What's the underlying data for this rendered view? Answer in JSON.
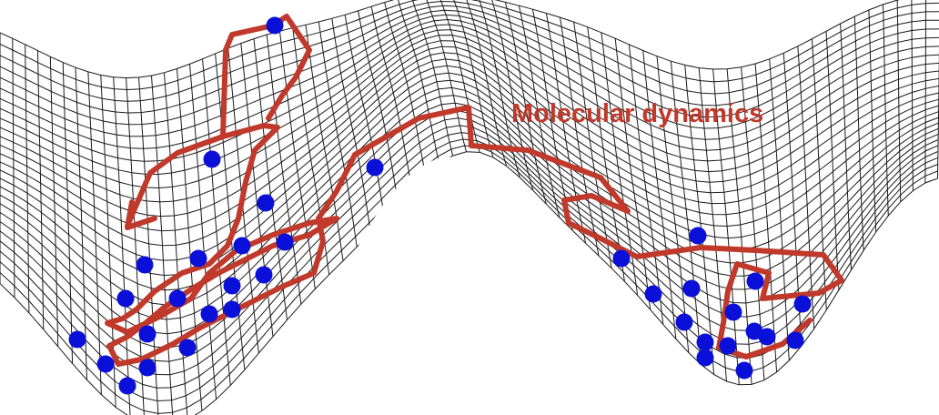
{
  "label": "Molecular dynamics",
  "colors": {
    "path": "#c0392b",
    "points": "#0a10d8",
    "mesh": "#1a1a1a",
    "background": "#ffffff"
  },
  "icons": [
    "surface-mesh",
    "trajectory-arrowhead",
    "sample-point"
  ]
}
